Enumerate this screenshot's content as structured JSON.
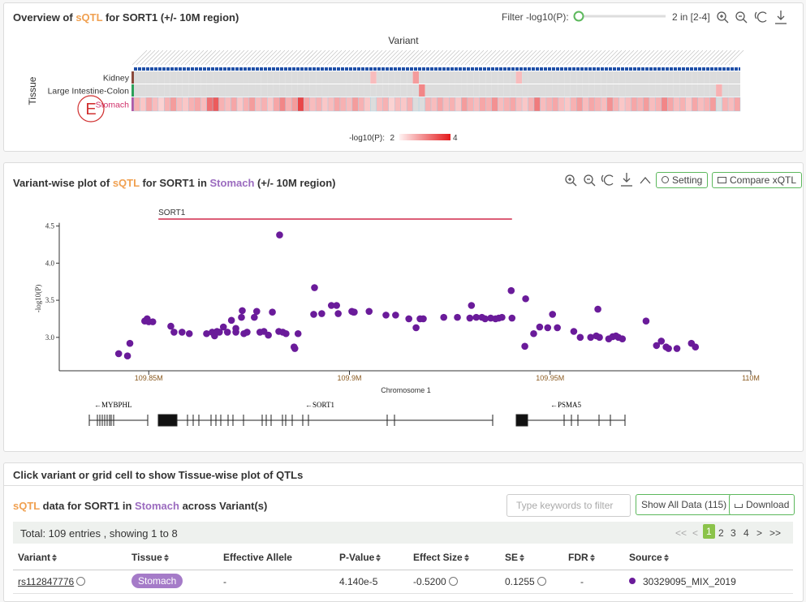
{
  "overview": {
    "title_prefix": "Overview of",
    "title_qtl": "sQTL",
    "title_suffix": "for SORT1 (+/- 10M region)",
    "filter_label": "Filter -log10(P):",
    "filter_value": "2 in [2-4]",
    "marker": "E"
  },
  "variant_panel": {
    "title_prefix": "Variant-wise plot of",
    "title_qtl": "sQTL",
    "title_mid": "for SORT1 in",
    "title_tissue": "Stomach",
    "title_suffix": "(+/- 10M region)",
    "buttons": [
      "Setting",
      "Compare xQTL"
    ],
    "genes": [
      "←MYBPHL",
      "←SORT1",
      "←PSMA5"
    ]
  },
  "hint": "Click variant or grid cell to show Tissue-wise plot of QTLs",
  "table_panel": {
    "title_qtl": "sQTL",
    "title_mid": "data for SORT1 in",
    "title_tissue": "Stomach",
    "title_suffix": "across Variant(s)",
    "filter_placeholder": "Type keywords to filter",
    "show_all": "Show All Data (115)",
    "download": "Download",
    "summary": "Total: 109 entries , showing 1 to 8",
    "pagination": [
      "<<",
      "<",
      "1",
      "2",
      "3",
      "4",
      ">",
      ">>"
    ],
    "headers": [
      "Variant",
      "Tissue",
      "Effective Allele",
      "P-Value",
      "Effect Size",
      "SE",
      "FDR",
      "Source"
    ],
    "rows": [
      [
        "rs112847776",
        "Stomach",
        "-",
        "4.140e-5",
        "-0.5200",
        "0.1255",
        "-",
        "30329095_MIX_2019"
      ]
    ]
  },
  "chart_data": [
    {
      "type": "heatmap",
      "x_label": "Variant",
      "y_label": "Tissue",
      "colorbar_label": "-log10(P):",
      "zlim": [
        2,
        4
      ],
      "colorbar_ticks": [
        2,
        4
      ],
      "colorscale": [
        "#fff2f2",
        "#e41a1c"
      ],
      "missing_color": "#dcdcdc",
      "series": [
        {
          "name": "Kidney",
          "color": "#8b4a3c",
          "values": [
            null,
            null,
            null,
            null,
            null,
            null,
            null,
            null,
            null,
            null,
            null,
            null,
            null,
            null,
            null,
            null,
            null,
            null,
            null,
            null,
            null,
            null,
            null,
            null,
            null,
            null,
            null,
            null,
            null,
            null,
            null,
            null,
            null,
            null,
            null,
            null,
            null,
            null,
            null,
            2.5,
            null,
            null,
            null,
            null,
            null,
            null,
            2.8,
            null,
            null,
            null,
            null,
            null,
            null,
            null,
            null,
            null,
            null,
            null,
            null,
            null,
            null,
            null,
            null,
            2.5,
            null,
            null,
            null,
            null,
            null,
            null,
            null,
            null,
            null,
            null,
            null,
            null,
            null,
            null,
            null,
            null,
            null,
            null,
            null,
            null,
            null,
            null,
            null,
            null,
            null,
            null,
            null,
            null,
            null,
            null,
            null,
            null,
            null,
            null,
            null,
            null
          ]
        },
        {
          "name": "Large Intestine-Colon",
          "color": "#2ca05a",
          "values": [
            null,
            null,
            null,
            null,
            null,
            null,
            null,
            null,
            null,
            null,
            null,
            null,
            null,
            null,
            null,
            null,
            null,
            null,
            null,
            null,
            null,
            null,
            null,
            null,
            null,
            null,
            null,
            null,
            null,
            null,
            null,
            null,
            null,
            null,
            null,
            null,
            null,
            null,
            null,
            null,
            null,
            null,
            null,
            null,
            null,
            null,
            null,
            3.0,
            null,
            null,
            null,
            null,
            null,
            null,
            null,
            null,
            null,
            null,
            null,
            null,
            null,
            null,
            null,
            null,
            null,
            null,
            null,
            null,
            null,
            null,
            null,
            null,
            null,
            null,
            null,
            null,
            null,
            null,
            null,
            null,
            null,
            null,
            null,
            null,
            null,
            null,
            null,
            null,
            null,
            null,
            null,
            null,
            null,
            null,
            null,
            null,
            2.6,
            null,
            null,
            null
          ]
        },
        {
          "name": "Stomach",
          "color": "#b05aa8",
          "values": [
            2.6,
            2.4,
            2.7,
            2.5,
            2.3,
            2.6,
            2.8,
            2.5,
            2.4,
            2.6,
            2.7,
            2.5,
            3.2,
            3.4,
            2.6,
            2.5,
            2.7,
            2.4,
            2.6,
            2.8,
            2.5,
            2.6,
            2.4,
            2.7,
            3.0,
            2.6,
            2.8,
            3.6,
            2.7,
            2.5,
            2.6,
            2.4,
            2.5,
            2.7,
            2.6,
            2.5,
            2.8,
            2.6,
            2.4,
            null,
            2.5,
            2.6,
            2.3,
            2.5,
            2.4,
            2.6,
            null,
            null,
            2.6,
            2.5,
            2.7,
            2.5,
            2.6,
            2.4,
            2.8,
            2.6,
            2.5,
            2.7,
            2.6,
            2.9,
            2.5,
            2.6,
            2.7,
            2.5,
            2.4,
            2.6,
            3.1,
            2.5,
            2.6,
            2.7,
            2.5,
            2.4,
            2.6,
            2.8,
            2.5,
            2.7,
            2.6,
            2.5,
            2.9,
            2.6,
            2.4,
            2.5,
            2.7,
            2.6,
            2.8,
            2.5,
            2.6,
            3.0,
            2.7,
            2.5,
            2.6,
            2.4,
            2.7,
            2.5,
            2.6,
            2.8,
            null,
            2.6,
            2.5,
            2.7
          ]
        }
      ]
    },
    {
      "type": "scatter",
      "x_label": "Chromosome 1",
      "y_label": "-log10(P)",
      "color": "#6a1b9a",
      "xlim": [
        109.8277,
        110.0
      ],
      "ylim": [
        2.55,
        4.5
      ],
      "xticks": [
        {
          "value": 109.85,
          "label": "109.85M"
        },
        {
          "value": 109.9,
          "label": "109.9M"
        },
        {
          "value": 109.95,
          "label": "109.95M"
        },
        {
          "value": 110,
          "label": "110M"
        }
      ],
      "yticks": [
        {
          "value": 3,
          "label": "3.0"
        },
        3.5,
        {
          "value": 4,
          "label": "4.0"
        },
        4.5
      ],
      "region": {
        "label": "SORT1",
        "start": 109.8524,
        "end": 109.9405,
        "color": "#d0284a"
      },
      "x": [
        109.8425,
        109.8447,
        109.8453,
        109.849,
        109.8496,
        109.85,
        109.851,
        109.8555,
        109.8563,
        109.8583,
        109.8601,
        109.8644,
        109.8658,
        109.8664,
        109.867,
        109.8676,
        109.8686,
        109.8696,
        109.8706,
        109.8717,
        109.8717,
        109.8733,
        109.8731,
        109.8737,
        109.8745,
        109.8763,
        109.8769,
        109.8777,
        109.8787,
        109.8798,
        109.8808,
        109.8824,
        109.8826,
        109.8834,
        109.8842,
        109.8862,
        109.8864,
        109.8872,
        109.8913,
        109.8911,
        109.8931,
        109.8955,
        109.8968,
        109.8972,
        109.9006,
        109.901,
        109.9012,
        109.9049,
        109.9091,
        109.9115,
        109.9148,
        109.9166,
        109.9176,
        109.9184,
        109.9235,
        109.9269,
        109.9304,
        109.93,
        109.9316,
        109.933,
        109.9338,
        109.9352,
        109.9364,
        109.9372,
        109.938,
        109.9405,
        109.9403,
        109.9437,
        109.9439,
        109.9459,
        109.9474,
        109.9494,
        109.9506,
        109.9518,
        109.9559,
        109.9575,
        109.9601,
        109.9615,
        109.9623,
        109.9619,
        109.9646,
        109.9656,
        109.9664,
        109.967,
        109.968,
        109.9739,
        109.9765,
        109.9777,
        109.9789,
        109.9795,
        109.9816,
        109.9852,
        109.9862
      ],
      "y": [
        2.78,
        2.75,
        2.92,
        3.22,
        3.25,
        3.21,
        3.21,
        3.15,
        3.07,
        3.07,
        3.05,
        3.05,
        3.07,
        3.02,
        3.08,
        3.07,
        3.14,
        3.07,
        3.23,
        3.07,
        3.12,
        3.36,
        3.27,
        3.05,
        3.07,
        3.27,
        3.35,
        3.07,
        3.08,
        3.03,
        3.34,
        3.08,
        4.38,
        3.07,
        3.05,
        2.87,
        2.85,
        3.05,
        3.67,
        3.31,
        3.32,
        3.43,
        3.43,
        3.32,
        3.35,
        3.34,
        3.34,
        3.35,
        3.3,
        3.3,
        3.25,
        3.13,
        3.25,
        3.25,
        3.27,
        3.27,
        3.43,
        3.26,
        3.27,
        3.27,
        3.25,
        3.26,
        3.25,
        3.26,
        3.27,
        3.26,
        3.63,
        2.88,
        3.52,
        3.05,
        3.14,
        3.13,
        3.31,
        3.13,
        3.08,
        3,
        3,
        3.02,
        3,
        3.38,
        2.98,
        3.01,
        3.02,
        3,
        2.98,
        3.22,
        2.89,
        2.95,
        2.87,
        2.85,
        2.85,
        2.92,
        2.87
      ]
    }
  ]
}
